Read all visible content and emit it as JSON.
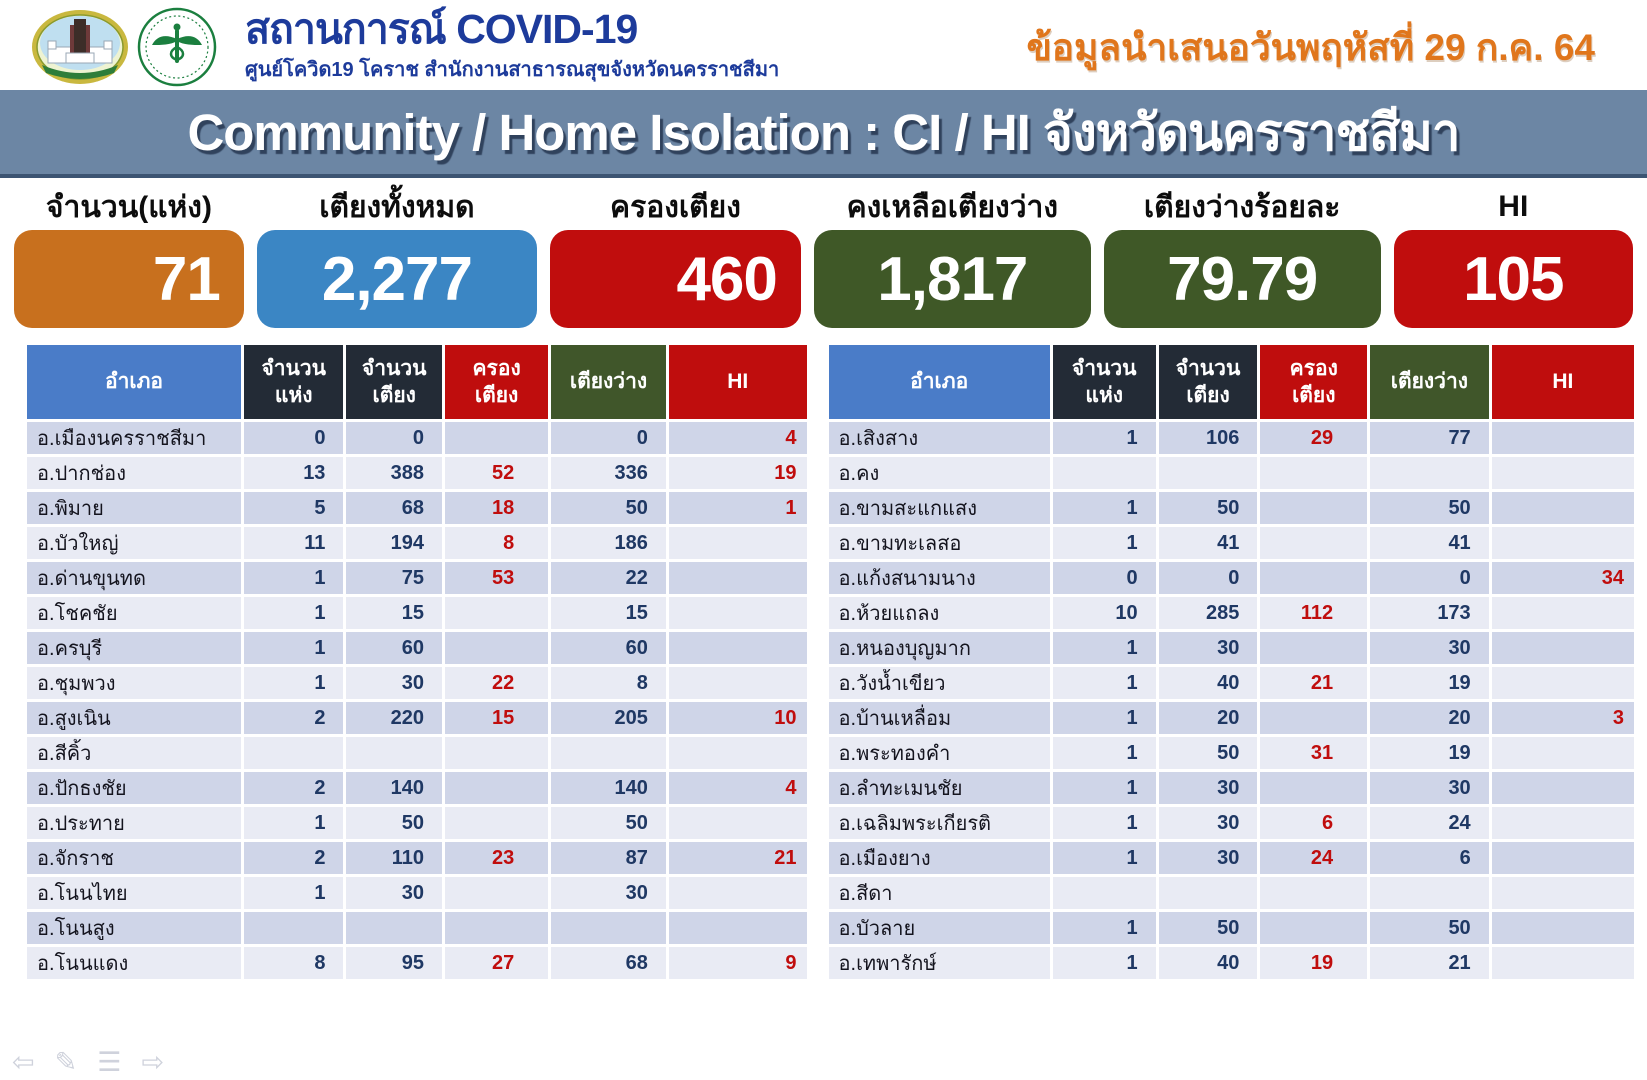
{
  "header": {
    "title": "สถานการณ์ COVID-19",
    "subtitle": "ศูนย์โควิด19 โคราช สำนักงานสาธารณสุขจังหวัดนครราชสีมา",
    "date_note": "ข้อมูลนำเสนอวันพฤหัสที่ 29 ก.ค. 64",
    "logos": [
      "provincial-seal",
      "ministry-of-public-health"
    ]
  },
  "banner": {
    "title": "Community / Home Isolation : CI / HI จังหวัดนครราชสีมา"
  },
  "stats": [
    {
      "label": "จำนวน(แห่ง)",
      "value": "71",
      "color": "#c8701e"
    },
    {
      "label": "เตียงทั้งหมด",
      "value": "2,277",
      "color": "#3b86c4"
    },
    {
      "label": "ครองเตียง",
      "value": "460",
      "color": "#c00d0d"
    },
    {
      "label": "คงเหลือเตียงว่าง",
      "value": "1,817",
      "color": "#3f5827"
    },
    {
      "label": "เตียงว่างร้อยละ",
      "value": "79.79",
      "color": "#3f5827"
    },
    {
      "label": "HI",
      "value": "105",
      "color": "#c00d0d"
    }
  ],
  "tables": {
    "columns": [
      "อำเภอ",
      "จำนวน\nแห่ง",
      "จำนวน\nเตียง",
      "ครอง\nเตียง",
      "เตียงว่าง",
      "HI"
    ],
    "left": {
      "rows": [
        [
          "อ.เมืองนครราชสีมา",
          "0",
          "0",
          "",
          "0",
          "4"
        ],
        [
          "อ.ปากช่อง",
          "13",
          "388",
          "52",
          "336",
          "19"
        ],
        [
          "อ.พิมาย",
          "5",
          "68",
          "18",
          "50",
          "1"
        ],
        [
          "อ.บัวใหญ่",
          "11",
          "194",
          "8",
          "186",
          ""
        ],
        [
          "อ.ด่านขุนทด",
          "1",
          "75",
          "53",
          "22",
          ""
        ],
        [
          "อ.โชคชัย",
          "1",
          "15",
          "",
          "15",
          ""
        ],
        [
          "อ.ครบุรี",
          "1",
          "60",
          "",
          "60",
          ""
        ],
        [
          "อ.ชุมพวง",
          "1",
          "30",
          "22",
          "8",
          ""
        ],
        [
          "อ.สูงเนิน",
          "2",
          "220",
          "15",
          "205",
          "10"
        ],
        [
          "อ.สีคิ้ว",
          "",
          "",
          "",
          "",
          ""
        ],
        [
          "อ.ปักธงชัย",
          "2",
          "140",
          "",
          "140",
          "4"
        ],
        [
          "อ.ประทาย",
          "1",
          "50",
          "",
          "50",
          ""
        ],
        [
          "อ.จักราช",
          "2",
          "110",
          "23",
          "87",
          "21"
        ],
        [
          "อ.โนนไทย",
          "1",
          "30",
          "",
          "30",
          ""
        ],
        [
          "อ.โนนสูง",
          "",
          "",
          "",
          "",
          ""
        ],
        [
          "อ.โนนแดง",
          "8",
          "95",
          "27",
          "68",
          "9"
        ]
      ]
    },
    "right": {
      "rows": [
        [
          "อ.เสิงสาง",
          "1",
          "106",
          "29",
          "77",
          ""
        ],
        [
          "อ.คง",
          "",
          "",
          "",
          "",
          ""
        ],
        [
          "อ.ขามสะแกแสง",
          "1",
          "50",
          "",
          "50",
          ""
        ],
        [
          "อ.ขามทะเลสอ",
          "1",
          "41",
          "",
          "41",
          ""
        ],
        [
          "อ.แก้งสนามนาง",
          "0",
          "0",
          "",
          "0",
          "34"
        ],
        [
          "อ.ห้วยแถลง",
          "10",
          "285",
          "112",
          "173",
          ""
        ],
        [
          "อ.หนองบุญมาก",
          "1",
          "30",
          "",
          "30",
          ""
        ],
        [
          "อ.วังน้ำเขียว",
          "1",
          "40",
          "21",
          "19",
          ""
        ],
        [
          "อ.บ้านเหลื่อม",
          "1",
          "20",
          "",
          "20",
          "3"
        ],
        [
          "อ.พระทองคำ",
          "1",
          "50",
          "31",
          "19",
          ""
        ],
        [
          "อ.ลำทะเมนชัย",
          "1",
          "30",
          "",
          "30",
          ""
        ],
        [
          "อ.เฉลิมพระเกียรติ",
          "1",
          "30",
          "6",
          "24",
          ""
        ],
        [
          "อ.เมืองยาง",
          "1",
          "30",
          "24",
          "6",
          ""
        ],
        [
          "อ.สีดา",
          "",
          "",
          "",
          "",
          ""
        ],
        [
          "อ.บัวลาย",
          "1",
          "50",
          "",
          "50",
          ""
        ],
        [
          "อ.เทพารักษ์",
          "1",
          "40",
          "19",
          "21",
          ""
        ]
      ]
    }
  },
  "nav": {
    "icons": [
      {
        "name": "arrow-left-icon",
        "glyph": "⇦"
      },
      {
        "name": "pencil-icon",
        "glyph": "✎"
      },
      {
        "name": "menu-icon",
        "glyph": "☰"
      },
      {
        "name": "arrow-right-icon",
        "glyph": "⇨"
      }
    ]
  },
  "colors": {
    "banner_bg": "#6c86a4",
    "header_blue": "#4a7cc8",
    "header_dark": "#232b36",
    "header_red": "#bf0d0d",
    "header_green": "#40562a",
    "row_dark": "#cfd5e8",
    "row_light": "#e9ebf4",
    "number_navy": "#1f3864",
    "number_red": "#c00d0d",
    "title_blue": "#1d3b9b",
    "date_orange": "#e0761c"
  }
}
